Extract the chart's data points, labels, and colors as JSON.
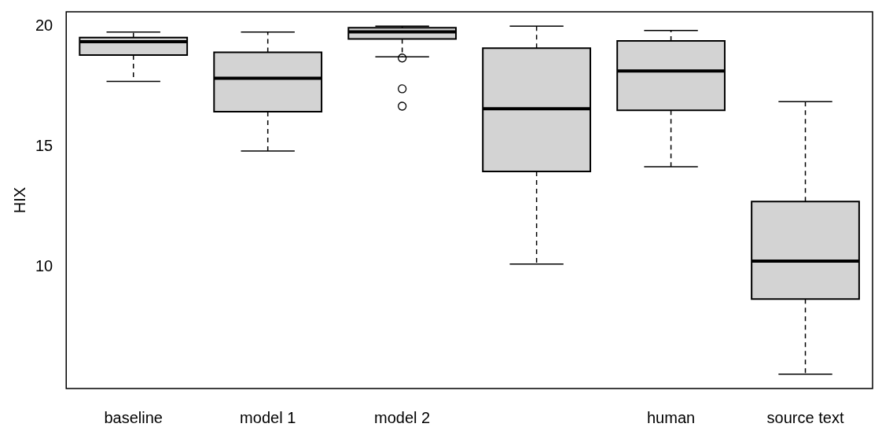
{
  "chart_data": {
    "type": "box",
    "ylabel": "HIX",
    "color": "#d3d3d3",
    "categories": [
      "baseline",
      "model 1",
      "model 2",
      null,
      "human",
      "source text"
    ],
    "boxes": [
      {
        "low": 17.71,
        "q1": 18.8,
        "median": 19.36,
        "q3": 19.53,
        "high": 19.76
      },
      {
        "low": 14.82,
        "q1": 16.45,
        "median": 17.84,
        "q3": 18.92,
        "high": 19.76
      },
      {
        "low": 18.73,
        "q1": 19.47,
        "median": 19.77,
        "q3": 19.94,
        "high": 20.0,
        "outliers": [
          18.68,
          17.4,
          16.68
        ]
      },
      {
        "low": 10.12,
        "q1": 13.97,
        "median": 16.57,
        "q3": 19.09,
        "high": 20.0
      },
      {
        "low": 14.16,
        "q1": 16.51,
        "median": 18.14,
        "q3": 19.39,
        "high": 19.82
      },
      {
        "low": 5.55,
        "q1": 8.67,
        "median": 10.24,
        "q3": 12.72,
        "high": 16.87
      }
    ],
    "ylim": [
      4.95,
      20.6
    ],
    "yticks": [
      10,
      15,
      20
    ]
  }
}
